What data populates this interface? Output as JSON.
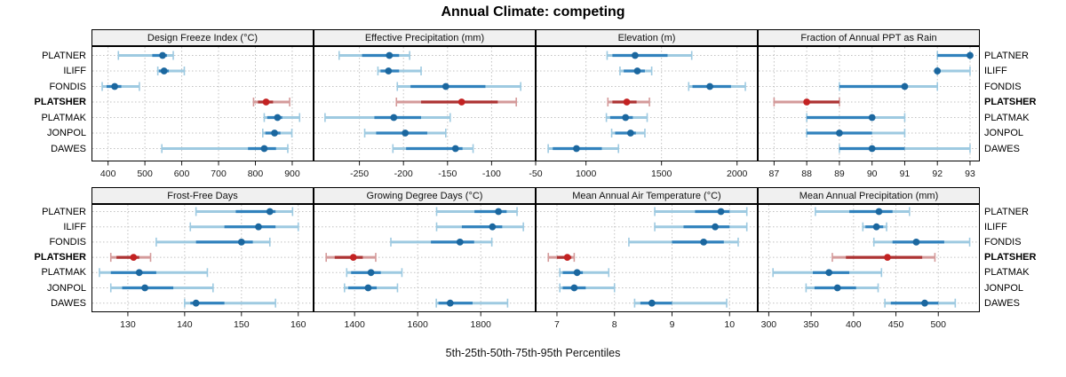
{
  "title": "Annual Climate: competing",
  "caption": "5th-25th-50th-75th-95th Percentiles",
  "sites": [
    "PLATNER",
    "ILIFF",
    "FONDIS",
    "PLATSHER",
    "PLATMAK",
    "JONPOL",
    "DAWES"
  ],
  "highlight_site": "PLATSHER",
  "percentile_labels": [
    "5th",
    "25th",
    "50th",
    "75th",
    "95th"
  ],
  "colors": {
    "normal_light": "#9ecae1",
    "normal_main": "#3182bd",
    "normal_dot": "#1b679f",
    "highlight_light": "#d49a9a",
    "highlight_main": "#ad3333",
    "highlight_dot": "#c32222",
    "grid": "#c2c2c2",
    "strip_bg": "#f0f0f0",
    "panel_border": "#000000"
  },
  "chart_data": [
    {
      "type": "dotplot-percentile",
      "title": "Design Freeze Index (°C)",
      "row": "top",
      "xlim": [
        355,
        958
      ],
      "ticks": [
        400,
        500,
        600,
        700,
        800,
        900
      ],
      "series": [
        {
          "name": "PLATNER",
          "values": [
            428,
            520,
            548,
            560,
            577
          ]
        },
        {
          "name": "ILIFF",
          "values": [
            535,
            538,
            552,
            565,
            607
          ]
        },
        {
          "name": "FONDIS",
          "values": [
            384,
            396,
            418,
            436,
            485
          ]
        },
        {
          "name": "PLATSHER",
          "values": [
            795,
            807,
            829,
            848,
            893
          ]
        },
        {
          "name": "PLATMAK",
          "values": [
            824,
            832,
            860,
            873,
            920
          ]
        },
        {
          "name": "JONPOL",
          "values": [
            820,
            827,
            852,
            868,
            899
          ]
        },
        {
          "name": "DAWES",
          "values": [
            546,
            780,
            824,
            856,
            888
          ]
        }
      ]
    },
    {
      "type": "dotplot-percentile",
      "title": "Effective Precipitation (mm)",
      "row": "top",
      "xlim": [
        -302,
        -50
      ],
      "ticks": [
        -250,
        -200,
        -150,
        -100,
        -50
      ],
      "series": [
        {
          "name": "PLATNER",
          "values": [
            -273,
            -247,
            -216,
            -205,
            -193
          ]
        },
        {
          "name": "ILIFF",
          "values": [
            -229,
            -226,
            -217,
            -205,
            -180
          ]
        },
        {
          "name": "FONDIS",
          "values": [
            -207,
            -192,
            -152,
            -107,
            -67
          ]
        },
        {
          "name": "PLATSHER",
          "values": [
            -208,
            -180,
            -134,
            -93,
            -72
          ]
        },
        {
          "name": "PLATMAK",
          "values": [
            -289,
            -233,
            -211,
            -180,
            -147
          ]
        },
        {
          "name": "JONPOL",
          "values": [
            -244,
            -231,
            -198,
            -173,
            -152
          ]
        },
        {
          "name": "DAWES",
          "values": [
            -212,
            -197,
            -141,
            -133,
            -121
          ]
        }
      ]
    },
    {
      "type": "dotplot-percentile",
      "title": "Elevation (m)",
      "row": "top",
      "xlim": [
        667,
        2137
      ],
      "ticks": [
        1000,
        1500,
        2000
      ],
      "series": [
        {
          "name": "PLATNER",
          "values": [
            1140,
            1175,
            1325,
            1540,
            1700
          ]
        },
        {
          "name": "ILIFF",
          "values": [
            1225,
            1250,
            1340,
            1390,
            1435
          ]
        },
        {
          "name": "FONDIS",
          "values": [
            1680,
            1705,
            1820,
            1960,
            2055
          ]
        },
        {
          "name": "PLATSHER",
          "values": [
            1145,
            1175,
            1270,
            1335,
            1420
          ]
        },
        {
          "name": "PLATMAK",
          "values": [
            1135,
            1160,
            1262,
            1310,
            1405
          ]
        },
        {
          "name": "JONPOL",
          "values": [
            1170,
            1193,
            1295,
            1330,
            1390
          ]
        },
        {
          "name": "DAWES",
          "values": [
            750,
            780,
            937,
            1105,
            1215
          ]
        }
      ]
    },
    {
      "type": "dotplot-percentile",
      "title": "Fraction of Annual PPT as Rain",
      "row": "top",
      "xlim": [
        86.5,
        93.3
      ],
      "ticks": [
        87,
        88,
        89,
        90,
        91,
        92,
        93
      ],
      "series": [
        {
          "name": "PLATNER",
          "values": [
            92,
            92,
            93,
            93,
            93
          ]
        },
        {
          "name": "ILIFF",
          "values": [
            92,
            92,
            92,
            92,
            93
          ]
        },
        {
          "name": "FONDIS",
          "values": [
            89,
            89,
            91,
            91,
            92
          ]
        },
        {
          "name": "PLATSHER",
          "values": [
            87,
            88,
            88,
            89,
            89
          ]
        },
        {
          "name": "PLATMAK",
          "values": [
            88,
            88,
            90,
            90,
            91
          ]
        },
        {
          "name": "JONPOL",
          "values": [
            88,
            88,
            89,
            90,
            91
          ]
        },
        {
          "name": "DAWES",
          "values": [
            89,
            89,
            90,
            91,
            93
          ]
        }
      ]
    },
    {
      "type": "dotplot-percentile",
      "title": "Frost-Free Days",
      "row": "bottom",
      "xlim": [
        123.6,
        162.7
      ],
      "ticks": [
        130,
        140,
        150,
        160
      ],
      "series": [
        {
          "name": "PLATNER",
          "values": [
            142,
            149,
            155,
            156,
            159
          ]
        },
        {
          "name": "ILIFF",
          "values": [
            141,
            147,
            153,
            156,
            160
          ]
        },
        {
          "name": "FONDIS",
          "values": [
            135,
            142,
            150,
            152,
            155
          ]
        },
        {
          "name": "PLATSHER",
          "values": [
            127,
            128,
            131,
            132,
            134
          ]
        },
        {
          "name": "PLATMAK",
          "values": [
            125,
            127,
            132,
            135,
            144
          ]
        },
        {
          "name": "JONPOL",
          "values": [
            127,
            129,
            133,
            138,
            145
          ]
        },
        {
          "name": "DAWES",
          "values": [
            140,
            141,
            142,
            147,
            156
          ]
        }
      ]
    },
    {
      "type": "dotplot-percentile",
      "title": "Growing Degree Days (°C)",
      "row": "bottom",
      "xlim": [
        1270,
        1974
      ],
      "ticks": [
        1400,
        1600,
        1800
      ],
      "series": [
        {
          "name": "PLATNER",
          "values": [
            1660,
            1780,
            1856,
            1882,
            1915
          ]
        },
        {
          "name": "ILIFF",
          "values": [
            1660,
            1740,
            1837,
            1868,
            1935
          ]
        },
        {
          "name": "FONDIS",
          "values": [
            1515,
            1642,
            1734,
            1779,
            1835
          ]
        },
        {
          "name": "PLATSHER",
          "values": [
            1310,
            1337,
            1396,
            1426,
            1467
          ]
        },
        {
          "name": "PLATMAK",
          "values": [
            1375,
            1389,
            1452,
            1483,
            1550
          ]
        },
        {
          "name": "JONPOL",
          "values": [
            1368,
            1380,
            1443,
            1470,
            1536
          ]
        },
        {
          "name": "DAWES",
          "values": [
            1659,
            1666,
            1703,
            1774,
            1885
          ]
        }
      ]
    },
    {
      "type": "dotplot-percentile",
      "title": "Mean Annual Air Temperature (°C)",
      "row": "bottom",
      "xlim": [
        6.63,
        10.49
      ],
      "ticks": [
        7,
        8,
        9,
        10
      ],
      "series": [
        {
          "name": "PLATNER",
          "values": [
            8.7,
            9.4,
            9.85,
            10.0,
            10.3
          ]
        },
        {
          "name": "ILIFF",
          "values": [
            8.7,
            9.2,
            9.75,
            10.0,
            10.3
          ]
        },
        {
          "name": "FONDIS",
          "values": [
            8.25,
            9.0,
            9.55,
            9.9,
            10.15
          ]
        },
        {
          "name": "PLATSHER",
          "values": [
            6.85,
            7.0,
            7.18,
            7.25,
            7.3
          ]
        },
        {
          "name": "PLATMAK",
          "values": [
            7.05,
            7.1,
            7.35,
            7.45,
            7.9
          ]
        },
        {
          "name": "JONPOL",
          "values": [
            7.05,
            7.1,
            7.3,
            7.5,
            8.0
          ]
        },
        {
          "name": "DAWES",
          "values": [
            8.35,
            8.45,
            8.65,
            9.0,
            9.95
          ]
        }
      ]
    },
    {
      "type": "dotplot-percentile",
      "title": "Mean Annual Precipitation (mm)",
      "row": "bottom",
      "xlim": [
        287,
        549
      ],
      "ticks": [
        300,
        350,
        400,
        450,
        500
      ],
      "series": [
        {
          "name": "PLATNER",
          "values": [
            355,
            395,
            430,
            446,
            466
          ]
        },
        {
          "name": "ILIFF",
          "values": [
            411,
            414,
            427,
            435,
            439
          ]
        },
        {
          "name": "FONDIS",
          "values": [
            424,
            446,
            474,
            507,
            537
          ]
        },
        {
          "name": "PLATSHER",
          "values": [
            375,
            391,
            440,
            481,
            496
          ]
        },
        {
          "name": "PLATMAK",
          "values": [
            305,
            352,
            371,
            395,
            433
          ]
        },
        {
          "name": "JONPOL",
          "values": [
            344,
            354,
            381,
            403,
            429
          ]
        },
        {
          "name": "DAWES",
          "values": [
            437,
            444,
            484,
            500,
            520
          ]
        }
      ]
    }
  ]
}
